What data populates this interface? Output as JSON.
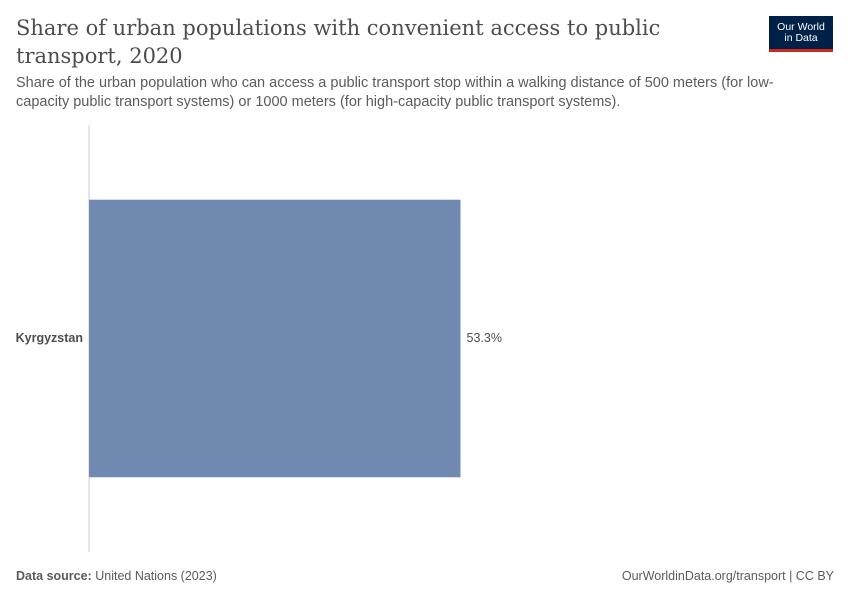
{
  "header": {
    "title": "Share of urban populations with convenient access to public transport, 2020",
    "subtitle": "Share of the urban population who can access a public transport stop within a walking distance of 500 meters (for low-capacity public transport systems) or 1000 meters (for high-capacity public transport systems)."
  },
  "logo": {
    "line1": "Our World",
    "line2": "in Data"
  },
  "footer": {
    "source_label": "Data source:",
    "source_value": "United Nations (2023)",
    "link": "OurWorldinData.org/transport | CC BY"
  },
  "colors": {
    "bar": "#6f89b1",
    "axis": "#cccccc",
    "label": "#4d4d4d"
  },
  "chart_data": {
    "type": "bar",
    "orientation": "horizontal",
    "categories": [
      "Kyrgyzstan"
    ],
    "values": [
      53.3
    ],
    "value_labels": [
      "53.3%"
    ],
    "unit": "%",
    "xlim": [
      0,
      100
    ],
    "grid": false,
    "legend": "none"
  }
}
